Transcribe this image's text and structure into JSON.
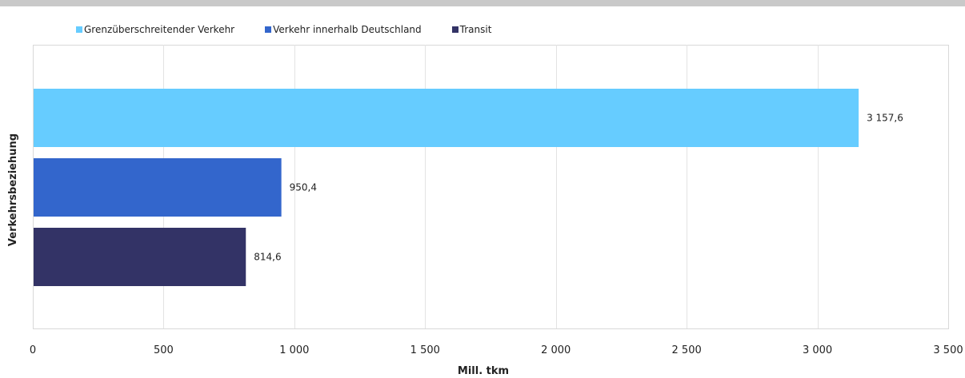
{
  "chart_data": {
    "type": "bar",
    "orientation": "horizontal",
    "categories": [
      "Grenzüberschreitender Verkehr",
      "Verkehr innerhalb Deutschland",
      "Transit"
    ],
    "values": [
      3157.6,
      950.4,
      814.6
    ],
    "value_labels": [
      "3 157,6",
      "950,4",
      "814,6"
    ],
    "colors": [
      "#66ccff",
      "#3366cc",
      "#333366"
    ],
    "xlabel": "Mill. tkm",
    "ylabel": "Verkehrsbeziehung",
    "xlim": [
      0,
      3500
    ],
    "x_ticks": [
      0,
      500,
      1000,
      1500,
      2000,
      2500,
      3000,
      3500
    ],
    "x_tick_labels": [
      "0",
      "500",
      "1 000",
      "1 500",
      "2 000",
      "2 500",
      "3 000",
      "3 500"
    ],
    "grid": true,
    "legend_position": "top-left"
  }
}
